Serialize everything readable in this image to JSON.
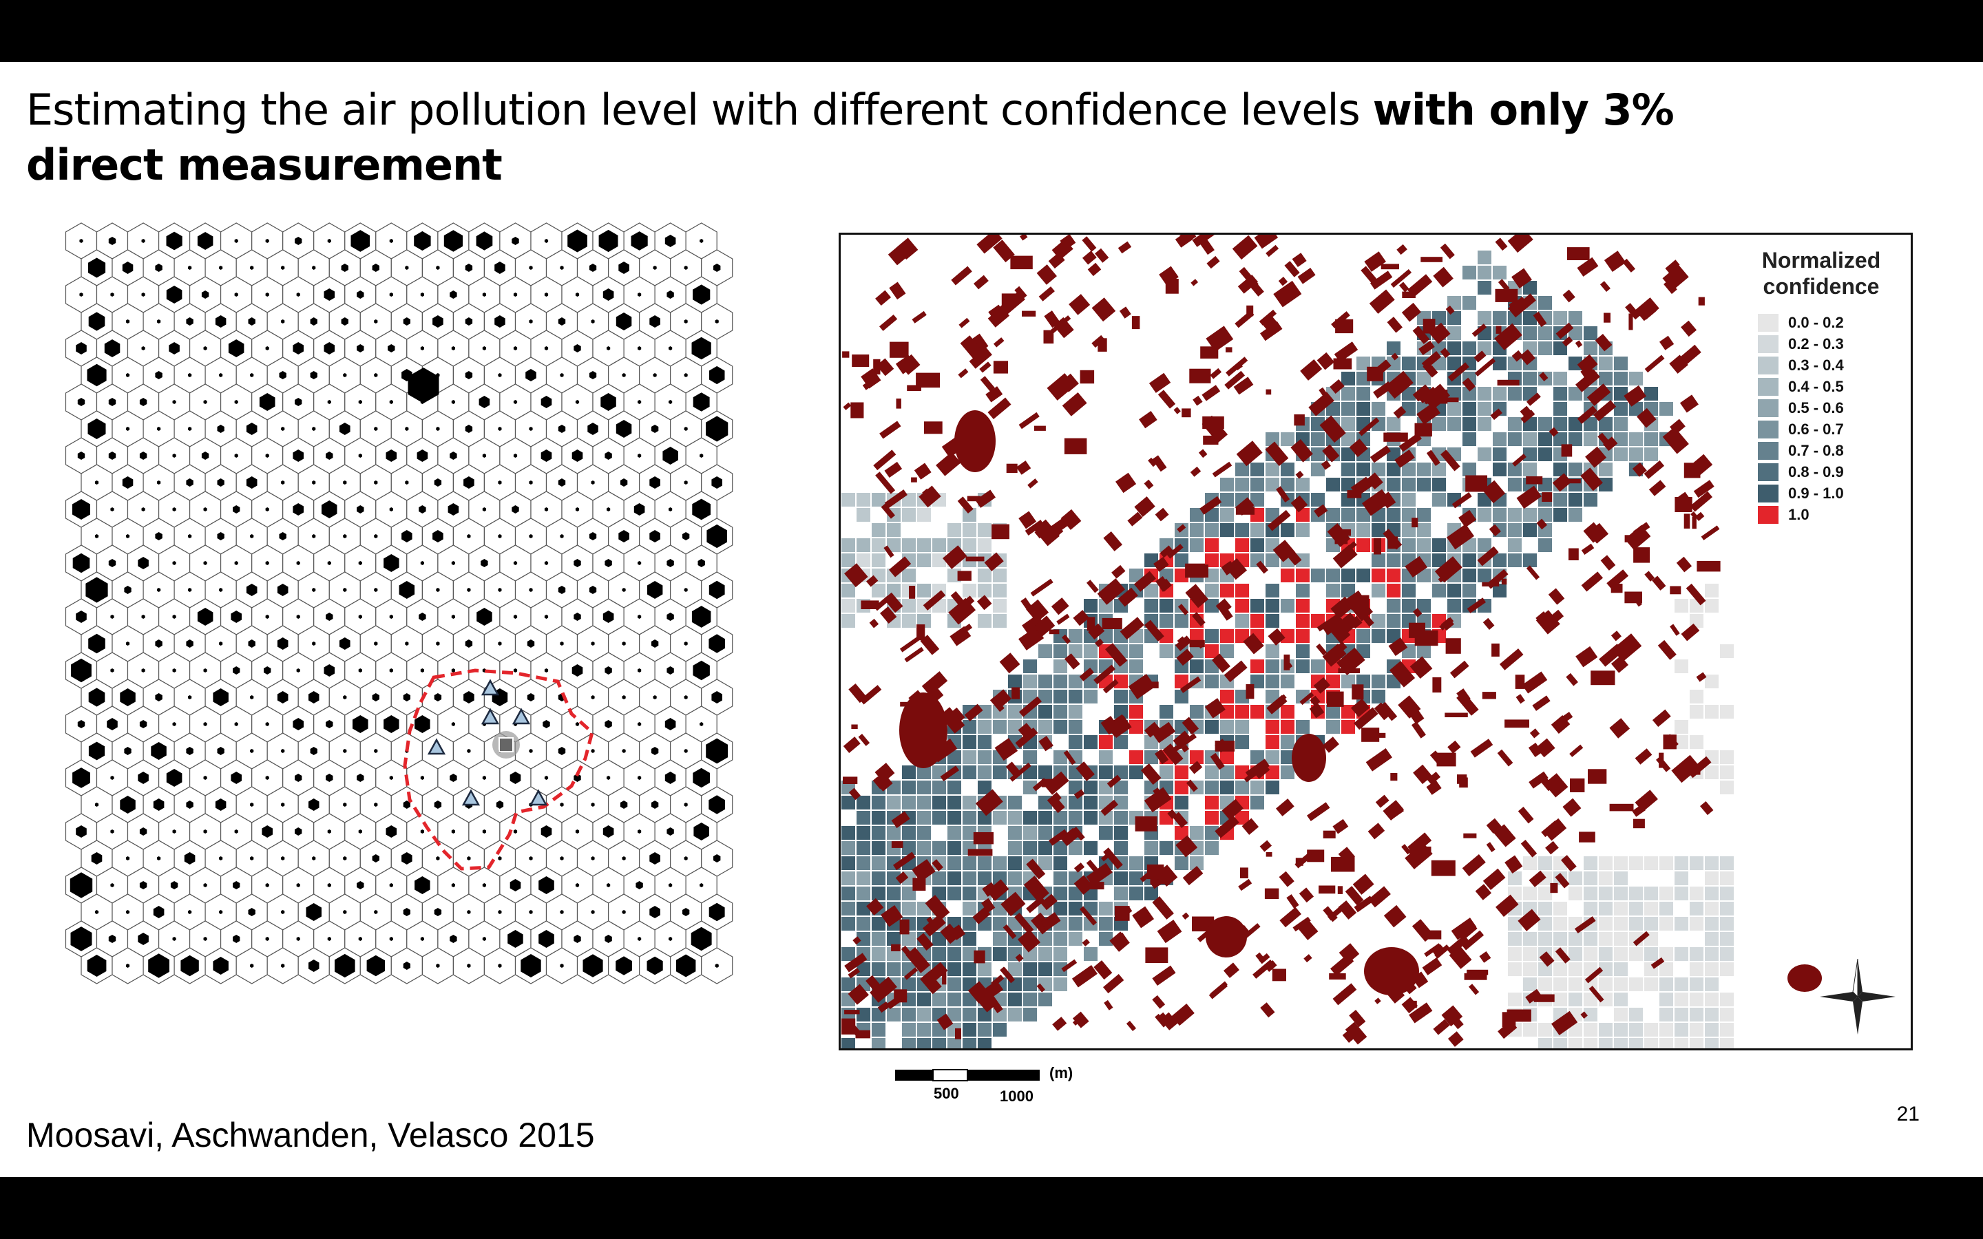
{
  "title": {
    "regular": "Estimating the air pollution level with different confidence levels ",
    "bold": "with only 3% direct measurement"
  },
  "map": {
    "legend_title": "Normalized confidence",
    "legend": [
      {
        "label": "0.0 - 0.2",
        "color": "#e6e6e6"
      },
      {
        "label": "0.2 - 0.3",
        "color": "#d3d9dc"
      },
      {
        "label": "0.3 - 0.4",
        "color": "#bcc8cd"
      },
      {
        "label": "0.4 - 0.5",
        "color": "#a6b7be"
      },
      {
        "label": "0.5 - 0.6",
        "color": "#90a5ae"
      },
      {
        "label": "0.6 - 0.7",
        "color": "#7a939e"
      },
      {
        "label": "0.7 - 0.8",
        "color": "#65818e"
      },
      {
        "label": "0.8 - 0.9",
        "color": "#506f7e"
      },
      {
        "label": "0.9 - 1.0",
        "color": "#3e5d6d"
      },
      {
        "label": "1.0",
        "color": "#e3252b"
      }
    ],
    "building_color": "#7a0c0c",
    "scale": {
      "unit": "(m)",
      "label_1": "500",
      "label_2": "1000"
    }
  },
  "citation": "Moosavi, Aschwanden, Velasco 2015",
  "page_number": "21"
}
